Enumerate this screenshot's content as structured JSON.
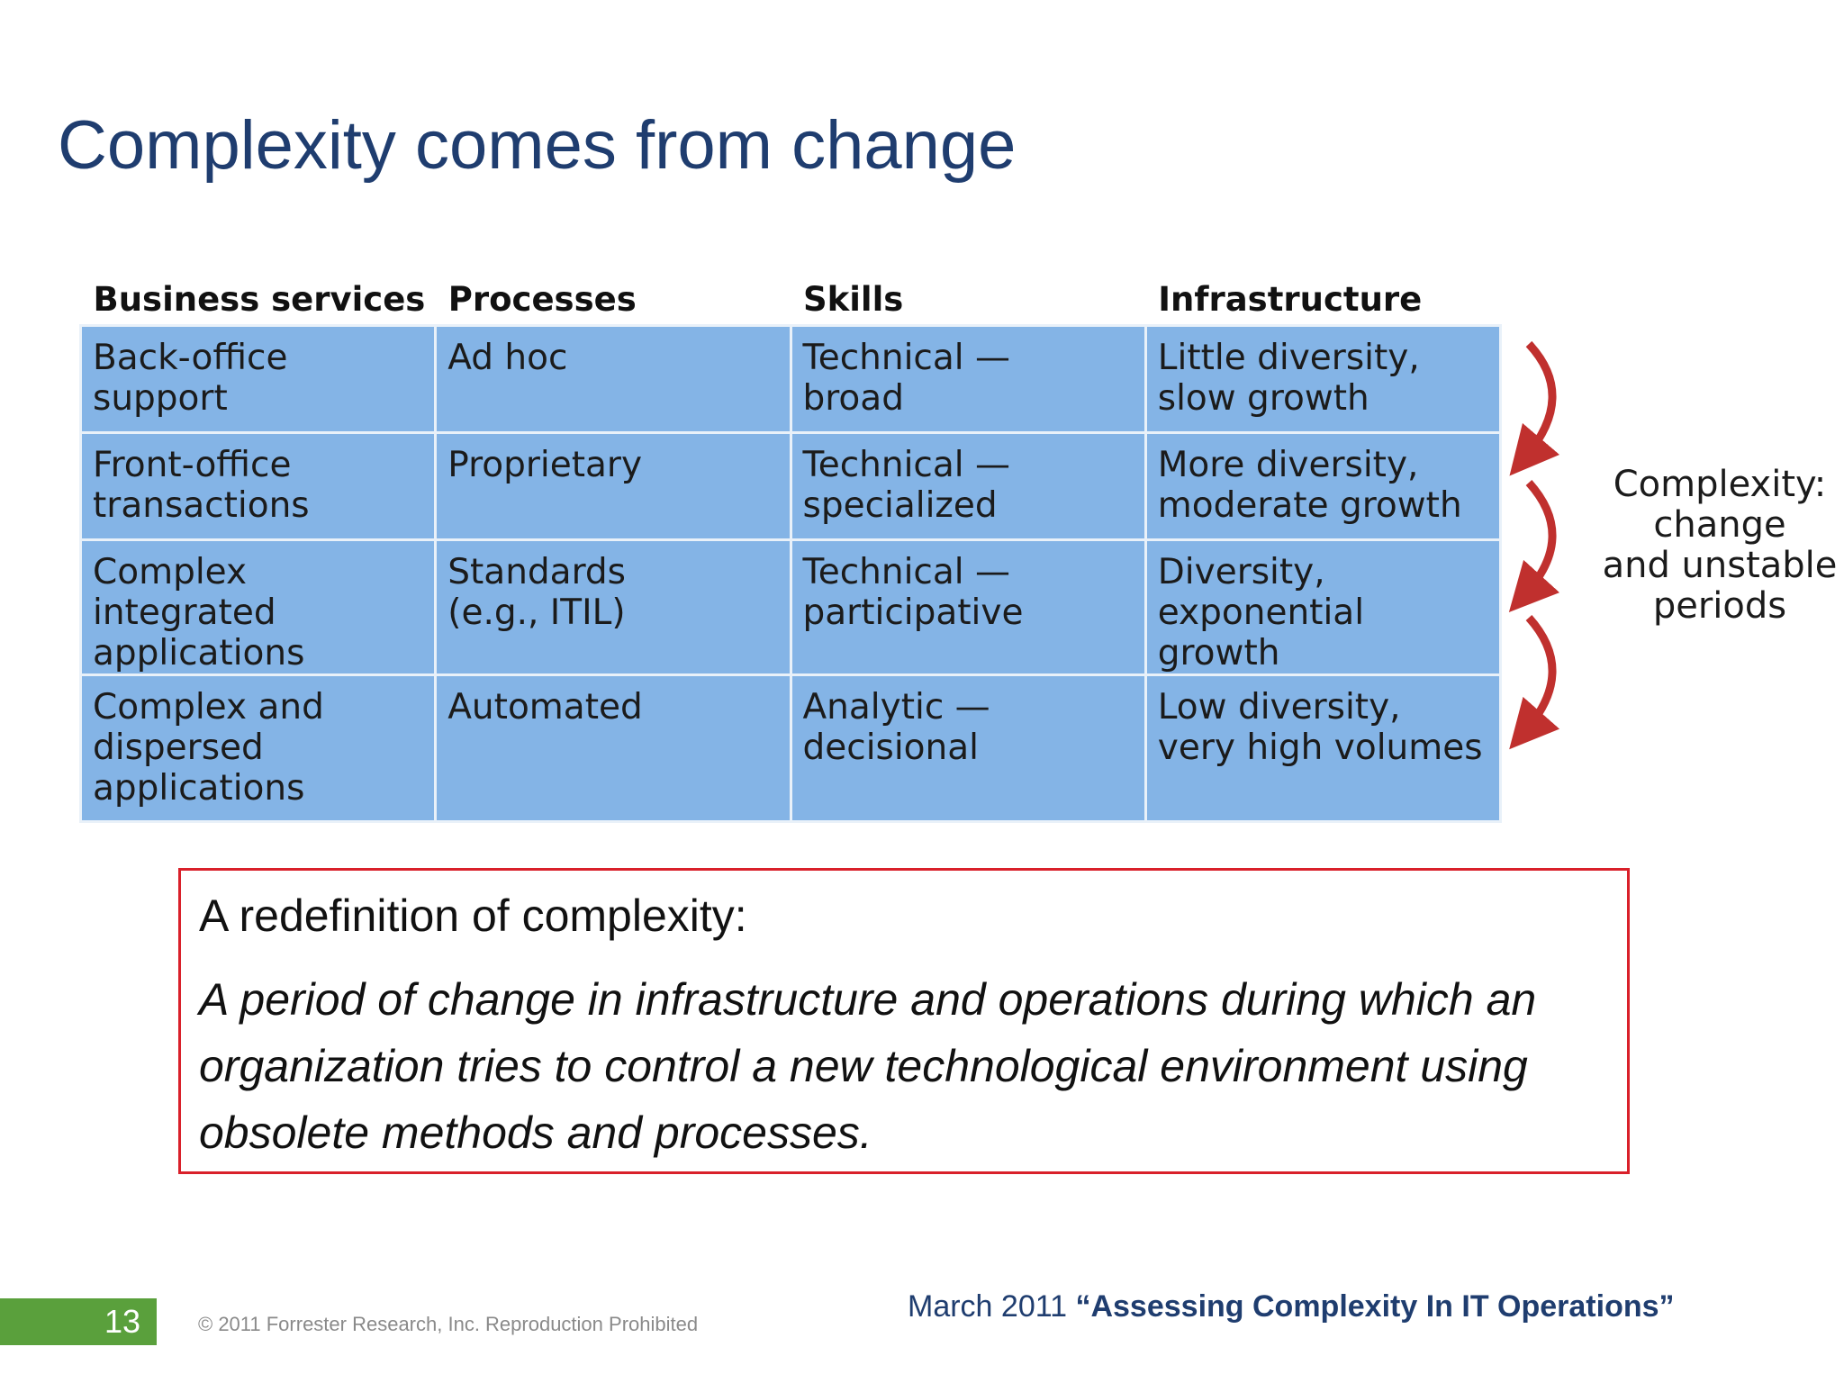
{
  "slide": {
    "title": "Complexity comes from change"
  },
  "table": {
    "headers": [
      "Business services",
      "Processes",
      "Skills",
      "Infrastructure"
    ],
    "rows": [
      [
        "Back-office\nsupport",
        "Ad hoc",
        "Technical —\nbroad",
        "Little diversity,\nslow growth"
      ],
      [
        "Front-office\ntransactions",
        "Proprietary",
        "Technical —\nspecialized",
        "More diversity,\nmoderate growth"
      ],
      [
        "Complex integrated\napplications",
        "Standards\n(e.g., ITIL)",
        "Technical —\nparticipative",
        "Diversity,\nexponential growth"
      ],
      [
        "Complex and\ndispersed\napplications",
        "Automated",
        "Analytic —\ndecisional",
        "Low diversity,\nvery high volumes"
      ]
    ],
    "side_label": "Complexity:\nchange\nand unstable\nperiods",
    "cell_color": "#84b4e6",
    "arrow_color": "#c0302e"
  },
  "definition": {
    "heading": "A redefinition of complexity:",
    "body": "A period of change in infrastructure and operations during which an organization tries to control a new technological environment using obsolete methods and processes.",
    "border_color": "#d9202a"
  },
  "footer": {
    "page_number": "13",
    "copyright": "© 2011 Forrester Research, Inc. Reproduction Prohibited",
    "citation_date": "March 2011",
    "citation_title": "“Assessing Complexity In IT Operations”"
  }
}
